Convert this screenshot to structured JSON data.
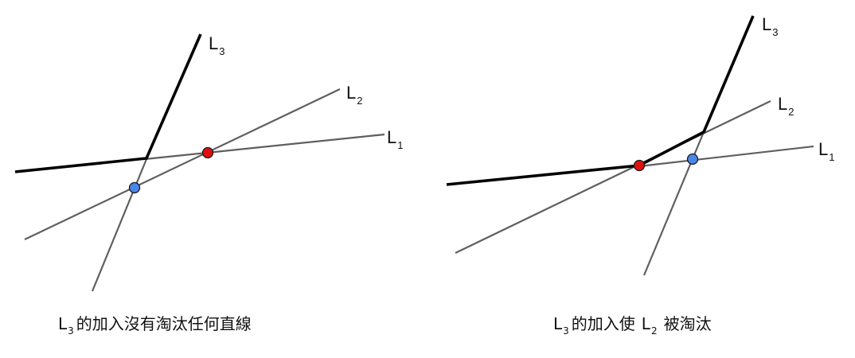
{
  "colors": {
    "red_point": "#e01010",
    "blue_point": "#4a86e8",
    "thin_line": "#5f5f5f",
    "envelope": "#000000"
  },
  "panels": [
    {
      "name": "left",
      "lines": [
        {
          "label": "L",
          "sub": "1"
        },
        {
          "label": "L",
          "sub": "2"
        },
        {
          "label": "L",
          "sub": "3"
        }
      ],
      "caption": {
        "prefix": "L",
        "sub": "3",
        "text": "的加入沒有淘汰任何直線"
      }
    },
    {
      "name": "right",
      "lines": [
        {
          "label": "L",
          "sub": "1"
        },
        {
          "label": "L",
          "sub": "2"
        },
        {
          "label": "L",
          "sub": "3"
        }
      ],
      "caption": {
        "prefix": "L",
        "sub": "3",
        "text": "的加入使",
        "prefix2": "L",
        "sub2": "2",
        "text2": "被淘汰"
      }
    }
  ]
}
